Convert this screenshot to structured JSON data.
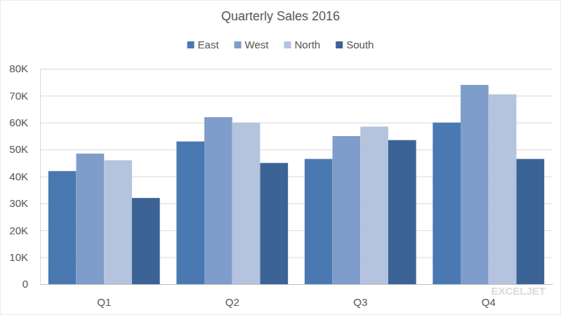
{
  "chart_data": {
    "type": "bar",
    "title": "Quarterly Sales 2016",
    "categories": [
      "Q1",
      "Q2",
      "Q3",
      "Q4"
    ],
    "series": [
      {
        "name": "East",
        "color": "#4a78b1",
        "values": [
          42000,
          53000,
          46500,
          60000
        ]
      },
      {
        "name": "West",
        "color": "#7f9dca",
        "values": [
          48500,
          62000,
          55000,
          74000
        ]
      },
      {
        "name": "North",
        "color": "#b4c3de",
        "values": [
          46000,
          60000,
          58500,
          70500
        ]
      },
      {
        "name": "South",
        "color": "#3b6395",
        "values": [
          32000,
          45000,
          53500,
          46500
        ]
      }
    ],
    "ylim": [
      0,
      80000
    ],
    "yticks": [
      0,
      {
        "value": 10000,
        "label": "10K"
      },
      {
        "value": 20000,
        "label": "20K"
      },
      {
        "value": 30000,
        "label": "30K"
      },
      {
        "value": 40000,
        "label": "40K"
      },
      {
        "value": 50000,
        "label": "50K"
      },
      {
        "value": 60000,
        "label": "60K"
      },
      {
        "value": 70000,
        "label": "70K"
      },
      {
        "value": 80000,
        "label": "80K"
      }
    ],
    "grid": true,
    "legend": "top",
    "annotations": [
      "EXCELJET"
    ]
  }
}
